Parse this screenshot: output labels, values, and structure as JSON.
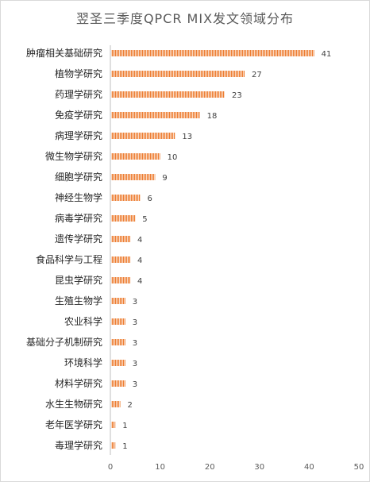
{
  "chart_data": {
    "type": "bar",
    "orientation": "horizontal",
    "title": "翌圣三季度QPCR MIX发文领域分布",
    "categories": [
      "肿瘤相关基础研究",
      "植物学研究",
      "药理学研究",
      "免疫学研究",
      "病理学研究",
      "微生物学研究",
      "细胞学研究",
      "神经生物学",
      "病毒学研究",
      "遗传学研究",
      "食品科学与工程",
      "昆虫学研究",
      "生殖生物学",
      "农业科学",
      "基础分子机制研究",
      "环境科学",
      "材料学研究",
      "水生生物研究",
      "老年医学研究",
      "毒理学研究"
    ],
    "values": [
      41,
      27,
      23,
      18,
      13,
      10,
      9,
      6,
      5,
      4,
      4,
      4,
      3,
      3,
      3,
      3,
      3,
      2,
      1,
      1
    ],
    "xlim": [
      0,
      50
    ],
    "x_ticks": [
      0,
      10,
      20,
      30,
      40,
      50
    ],
    "bar_color": "#ED7D31",
    "bar_pattern": "vertical-stripes",
    "grid": false,
    "legend": "none"
  }
}
